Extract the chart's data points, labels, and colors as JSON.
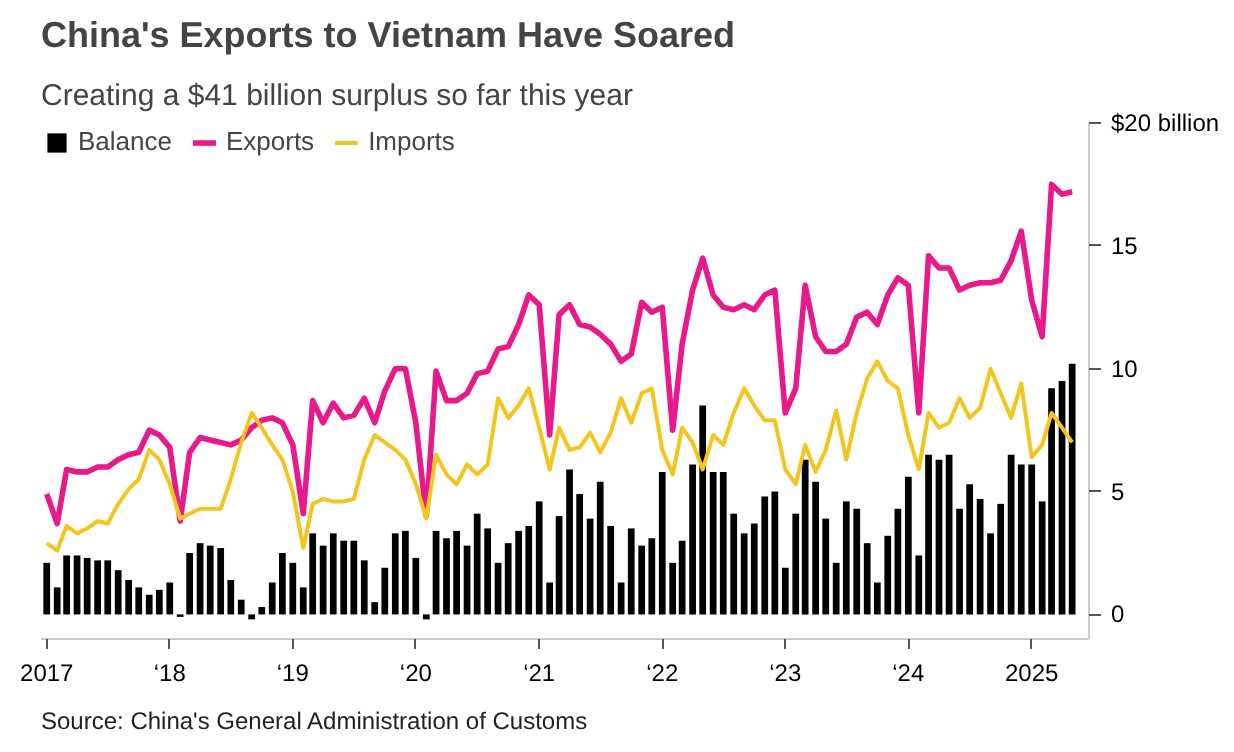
{
  "chart_data": {
    "type": "bar",
    "title": "China's Exports to Vietnam Have Soared",
    "subtitle": "Creating a $41 billion surplus so far this year",
    "x": [
      "2017-01",
      "2017-02",
      "2017-03",
      "2017-04",
      "2017-05",
      "2017-06",
      "2017-07",
      "2017-08",
      "2017-09",
      "2017-10",
      "2017-11",
      "2017-12",
      "2018-01",
      "2018-02",
      "2018-03",
      "2018-04",
      "2018-05",
      "2018-06",
      "2018-07",
      "2018-08",
      "2018-09",
      "2018-10",
      "2018-11",
      "2018-12",
      "2019-01",
      "2019-02",
      "2019-03",
      "2019-04",
      "2019-05",
      "2019-06",
      "2019-07",
      "2019-08",
      "2019-09",
      "2019-10",
      "2019-11",
      "2019-12",
      "2020-01",
      "2020-02",
      "2020-03",
      "2020-04",
      "2020-05",
      "2020-06",
      "2020-07",
      "2020-08",
      "2020-09",
      "2020-10",
      "2020-11",
      "2020-12",
      "2021-01",
      "2021-02",
      "2021-03",
      "2021-04",
      "2021-05",
      "2021-06",
      "2021-07",
      "2021-08",
      "2021-09",
      "2021-10",
      "2021-11",
      "2021-12",
      "2022-01",
      "2022-02",
      "2022-03",
      "2022-04",
      "2022-05",
      "2022-06",
      "2022-07",
      "2022-08",
      "2022-09",
      "2022-10",
      "2022-11",
      "2022-12",
      "2023-01",
      "2023-02",
      "2023-03",
      "2023-04",
      "2023-05",
      "2023-06",
      "2023-07",
      "2023-08",
      "2023-09",
      "2023-10",
      "2023-11",
      "2023-12",
      "2024-01",
      "2024-02",
      "2024-03",
      "2024-04",
      "2024-05",
      "2024-06",
      "2024-07",
      "2024-08",
      "2024-09",
      "2024-10",
      "2024-11",
      "2024-12",
      "2025-01",
      "2025-02",
      "2025-03",
      "2025-04",
      "2025-05"
    ],
    "series": [
      {
        "name": "Balance",
        "color": "#000000",
        "values": [
          2.1,
          1.1,
          2.4,
          2.4,
          2.3,
          2.2,
          2.2,
          1.8,
          1.4,
          1.1,
          0.8,
          1.0,
          1.3,
          -0.1,
          2.5,
          2.9,
          2.8,
          2.7,
          1.4,
          0.6,
          -0.2,
          0.3,
          1.3,
          2.5,
          2.1,
          1.1,
          3.3,
          2.8,
          3.3,
          3.0,
          3.0,
          2.2,
          0.5,
          1.9,
          3.3,
          3.4,
          2.3,
          -0.2,
          3.4,
          3.1,
          3.4,
          2.8,
          4.1,
          3.5,
          2.1,
          2.9,
          3.4,
          3.6,
          4.6,
          1.3,
          4.0,
          5.9,
          4.9,
          3.9,
          5.4,
          3.6,
          1.3,
          3.5,
          2.8,
          3.1,
          5.8,
          2.1,
          3.0,
          6.1,
          8.5,
          5.8,
          5.8,
          4.1,
          3.3,
          3.7,
          4.8,
          5.0,
          1.9,
          4.1,
          6.3,
          5.4,
          3.9,
          2.1,
          4.6,
          4.3,
          2.9,
          1.3,
          3.2,
          4.3,
          5.6,
          2.4,
          6.5,
          6.3,
          6.5,
          4.3,
          5.3,
          4.7,
          3.3,
          4.5,
          6.5,
          6.1,
          6.1,
          4.6,
          9.2,
          9.5,
          10.2
        ]
      },
      {
        "name": "Exports",
        "type": "line",
        "color": "#e8198b",
        "values": [
          4.9,
          3.7,
          5.9,
          5.8,
          5.8,
          6.0,
          6.0,
          6.3,
          6.5,
          6.6,
          7.5,
          7.3,
          6.8,
          3.8,
          6.6,
          7.2,
          7.1,
          7.0,
          6.9,
          7.1,
          7.6,
          7.9,
          8.0,
          7.8,
          6.9,
          4.1,
          8.7,
          7.8,
          8.6,
          8.0,
          8.1,
          8.8,
          7.8,
          9.1,
          10.0,
          10.0,
          7.8,
          4.0,
          9.9,
          8.7,
          8.7,
          9.0,
          9.8,
          9.9,
          10.8,
          10.9,
          11.8,
          13.0,
          12.6,
          7.3,
          12.2,
          12.6,
          11.8,
          11.7,
          11.4,
          11.0,
          10.3,
          10.6,
          12.7,
          12.3,
          12.5,
          7.5,
          11.0,
          13.2,
          14.5,
          13.0,
          12.5,
          12.4,
          12.6,
          12.4,
          13.0,
          13.2,
          8.2,
          9.2,
          13.4,
          11.3,
          10.7,
          10.7,
          11.0,
          12.1,
          12.3,
          11.8,
          13.0,
          13.7,
          13.4,
          8.2,
          14.6,
          14.1,
          14.1,
          13.2,
          13.4,
          13.5,
          13.5,
          13.6,
          14.4,
          15.6,
          12.8,
          11.3,
          17.5,
          17.1,
          17.2
        ]
      },
      {
        "name": "Imports",
        "type": "line",
        "color": "#f4c51e",
        "values": [
          2.9,
          2.6,
          3.6,
          3.3,
          3.5,
          3.8,
          3.7,
          4.5,
          5.1,
          5.5,
          6.7,
          6.3,
          5.3,
          3.9,
          4.1,
          4.3,
          4.3,
          4.3,
          5.5,
          7.0,
          8.2,
          7.6,
          6.9,
          6.3,
          5.0,
          2.7,
          4.5,
          4.7,
          4.6,
          4.6,
          4.7,
          6.3,
          7.3,
          7.0,
          6.7,
          6.3,
          5.3,
          3.9,
          6.5,
          5.7,
          5.3,
          6.1,
          5.7,
          6.1,
          8.8,
          8.0,
          8.5,
          9.2,
          7.6,
          5.9,
          7.6,
          6.7,
          6.8,
          7.4,
          6.6,
          7.4,
          8.8,
          7.8,
          9.0,
          9.2,
          6.7,
          5.7,
          7.6,
          7.0,
          5.9,
          7.3,
          6.9,
          8.2,
          9.2,
          8.5,
          7.9,
          7.9,
          5.9,
          5.3,
          6.9,
          5.8,
          6.7,
          8.3,
          6.3,
          8.2,
          9.6,
          10.3,
          9.5,
          9.2,
          7.3,
          5.9,
          8.2,
          7.6,
          7.8,
          8.8,
          8.0,
          8.4,
          10.0,
          9.0,
          8.0,
          9.4,
          6.4,
          6.9,
          8.2,
          7.6,
          7.0
        ]
      }
    ],
    "xlim": [
      "2016-12-15",
      "2025-06-20"
    ],
    "xticks": [
      {
        "value": "2017-01",
        "label": "2017"
      },
      {
        "value": "2018-01",
        "label": "‘18"
      },
      {
        "value": "2019-01",
        "label": "‘19"
      },
      {
        "value": "2020-01",
        "label": "‘20"
      },
      {
        "value": "2021-01",
        "label": "‘21"
      },
      {
        "value": "2022-01",
        "label": "‘22"
      },
      {
        "value": "2023-01",
        "label": "‘23"
      },
      {
        "value": "2024-01",
        "label": "‘24"
      },
      {
        "value": "2025-01",
        "label": "2025"
      }
    ],
    "ylim": [
      -1,
      20
    ],
    "yticks": [
      0,
      5,
      10,
      15,
      {
        "value": 20,
        "label": "$20 billion"
      }
    ],
    "grid": false,
    "legend": "top left",
    "annotations": [
      "Source: China's General Administration of Customs"
    ]
  }
}
